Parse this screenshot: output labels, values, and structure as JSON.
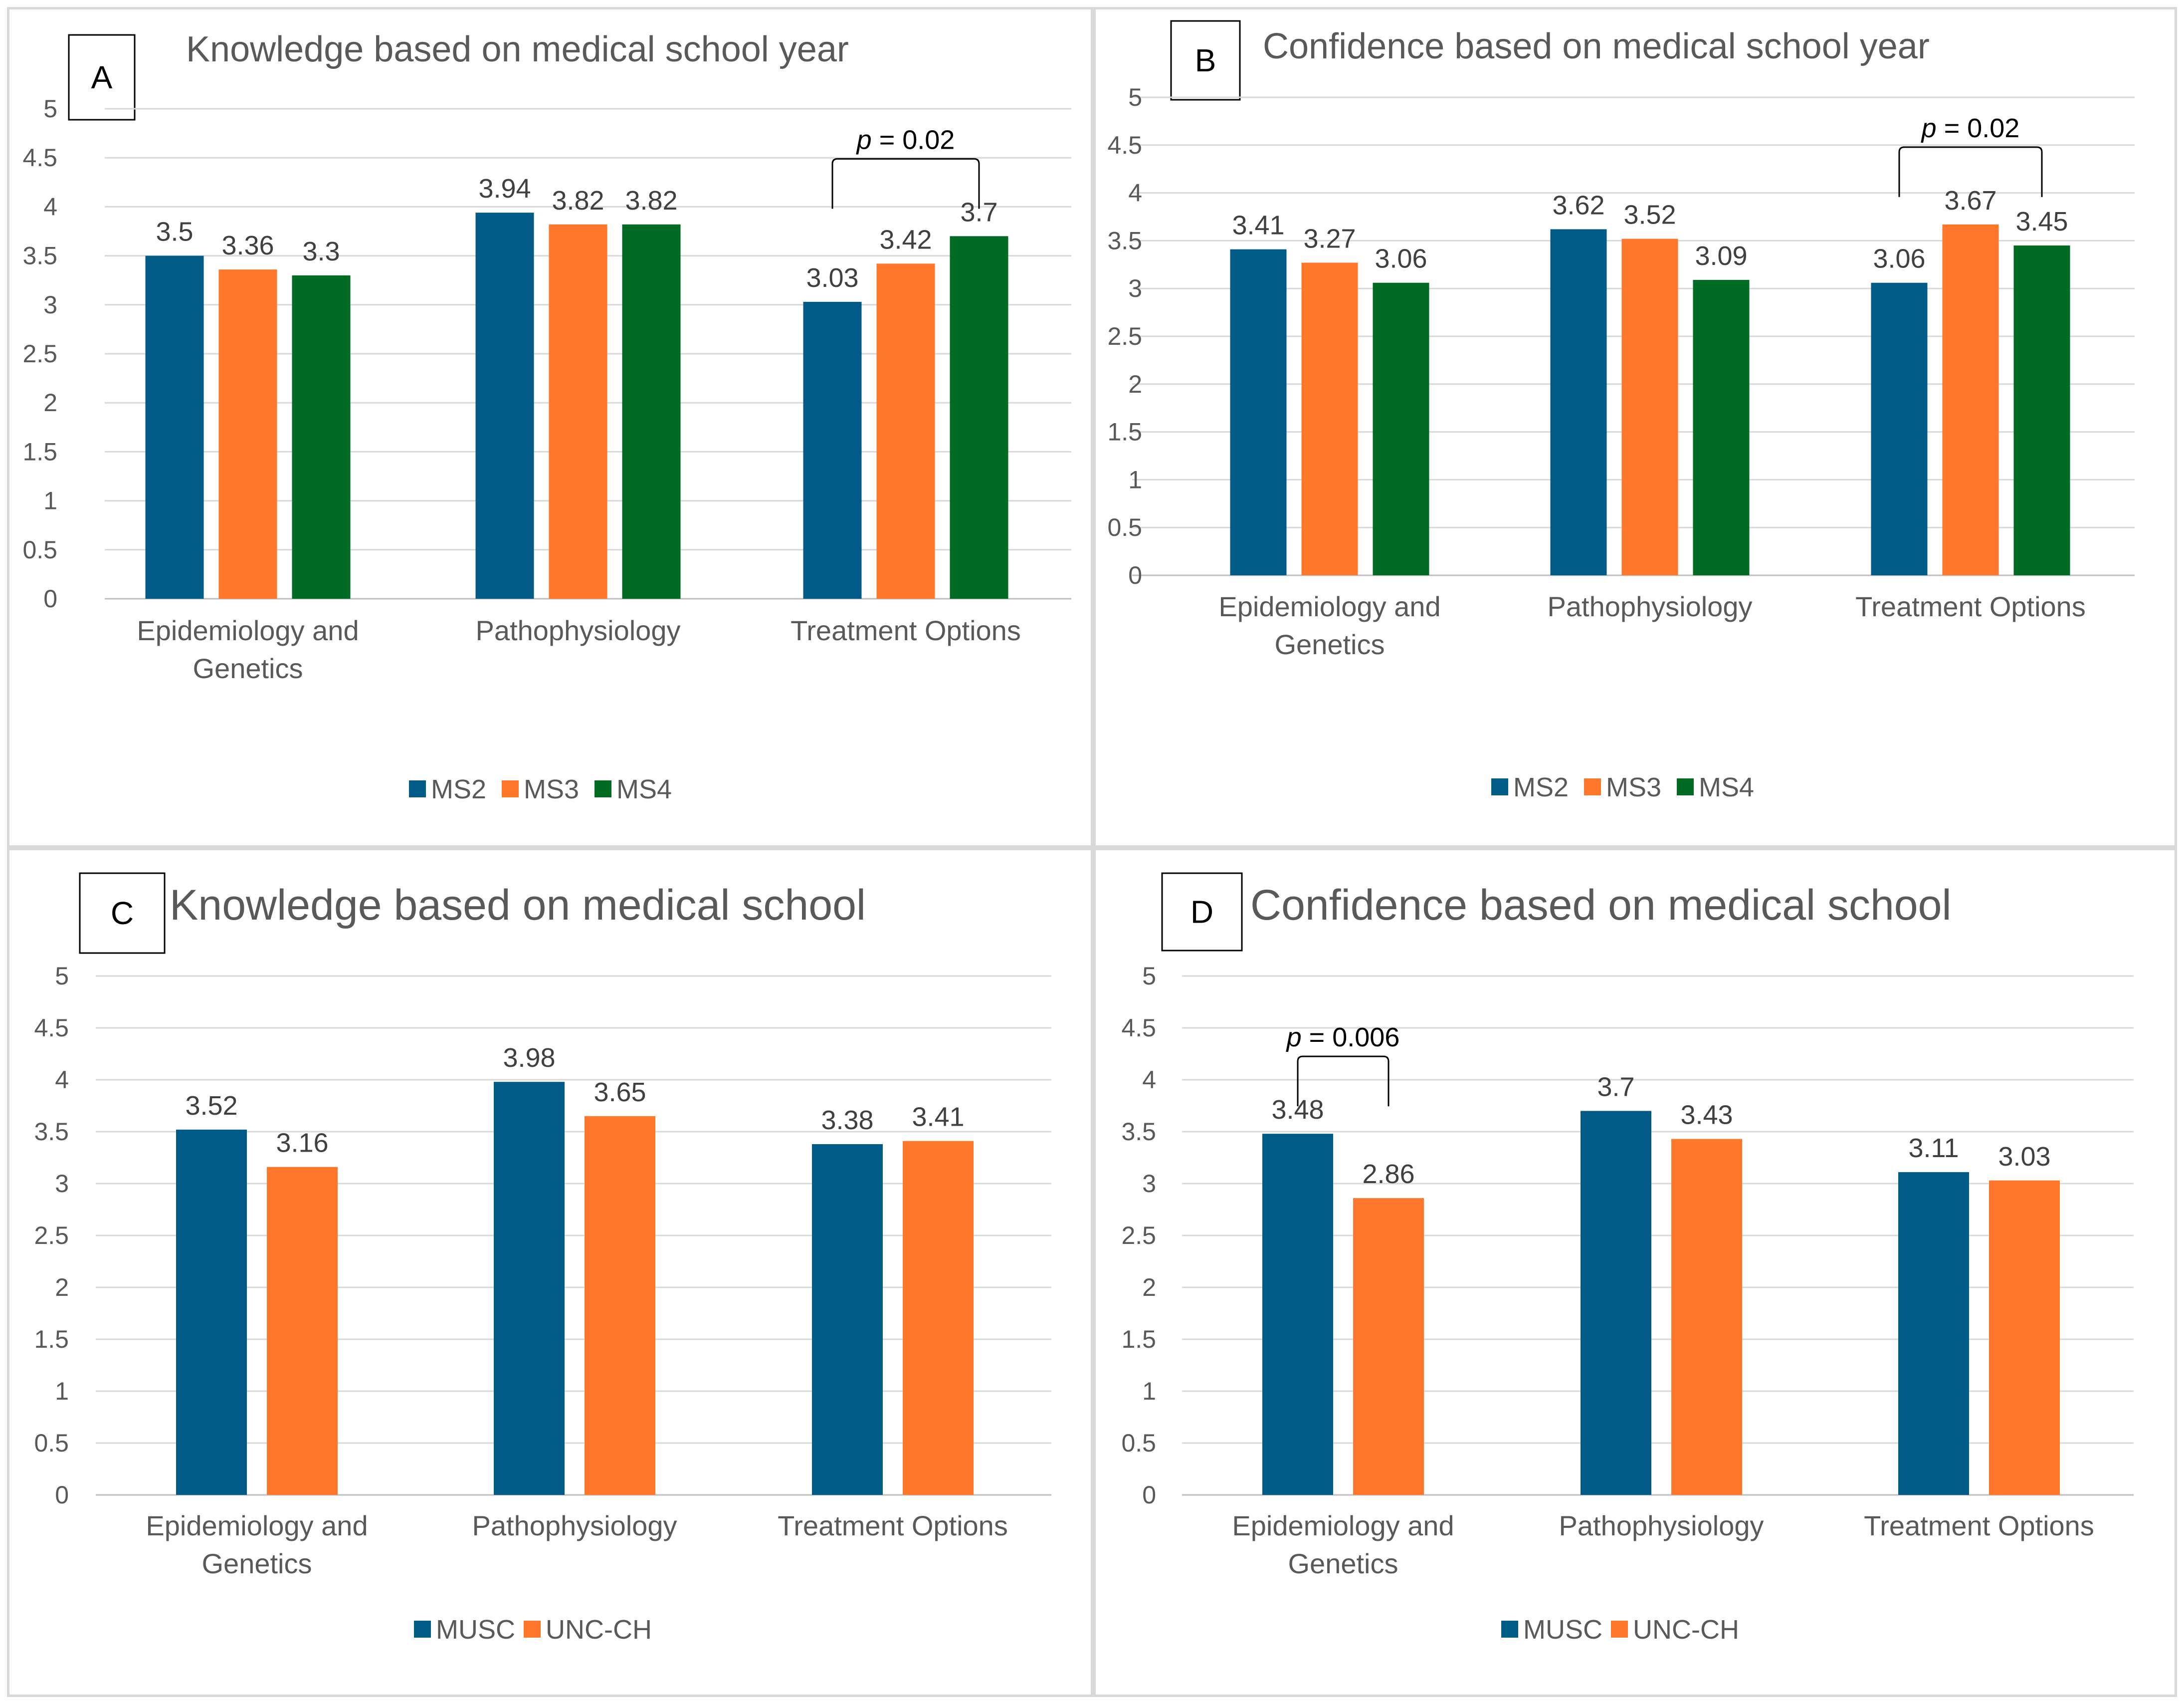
{
  "colors": {
    "blue": "#005c87",
    "orange": "#ff772a",
    "green": "#006b23",
    "grid": "#d9d9d9",
    "axis": "#bfbfbf"
  },
  "chart_data": [
    {
      "letter": "A",
      "type": "bar",
      "title": "Knowledge based on medical school year",
      "categories": [
        [
          "Epidemiology and",
          "Genetics"
        ],
        [
          "Pathophysiology"
        ],
        [
          "Treatment Options"
        ]
      ],
      "series": [
        {
          "name": "MS2",
          "color": "#005c87",
          "values": [
            3.5,
            3.94,
            3.03
          ],
          "labels": [
            "3.5",
            "3.94",
            "3.03"
          ]
        },
        {
          "name": "MS3",
          "color": "#ff772a",
          "values": [
            3.36,
            3.82,
            3.42
          ],
          "labels": [
            "3.36",
            "3.82",
            "3.42"
          ]
        },
        {
          "name": "MS4",
          "color": "#006b23",
          "values": [
            3.3,
            3.82,
            3.7
          ],
          "labels": [
            "3.3",
            "3.82",
            "3.7"
          ]
        }
      ],
      "ylim": [
        0,
        5
      ],
      "yticks": [
        "0",
        "0.5",
        "1",
        "1.5",
        "2",
        "2.5",
        "3",
        "3.5",
        "4",
        "4.5",
        "5"
      ],
      "annotation": {
        "p": "p",
        "rest": " = 0.02",
        "category": 2,
        "from_series": 0,
        "to_series": 2
      }
    },
    {
      "letter": "B",
      "type": "bar",
      "title": "Confidence based on medical school year",
      "categories": [
        [
          "Epidemiology and",
          "Genetics"
        ],
        [
          "Pathophysiology"
        ],
        [
          "Treatment Options"
        ]
      ],
      "series": [
        {
          "name": "MS2",
          "color": "#005c87",
          "values": [
            3.41,
            3.62,
            3.06
          ],
          "labels": [
            "3.41",
            "3.62",
            "3.06"
          ]
        },
        {
          "name": "MS3",
          "color": "#ff772a",
          "values": [
            3.27,
            3.52,
            3.67
          ],
          "labels": [
            "3.27",
            "3.52",
            "3.67"
          ]
        },
        {
          "name": "MS4",
          "color": "#006b23",
          "values": [
            3.06,
            3.09,
            3.45
          ],
          "labels": [
            "3.06",
            "3.09",
            "3.45"
          ]
        }
      ],
      "ylim": [
        0,
        5
      ],
      "yticks": [
        "0",
        "0.5",
        "1",
        "1.5",
        "2",
        "2.5",
        "3",
        "3.5",
        "4",
        "4.5",
        "5"
      ],
      "annotation": {
        "p": "p",
        "rest": " = 0.02",
        "category": 2,
        "from_series": 0,
        "to_series": 2
      }
    },
    {
      "letter": "C",
      "type": "bar",
      "title": "Knowledge based on medical school",
      "categories": [
        [
          "Epidemiology and",
          "Genetics"
        ],
        [
          "Pathophysiology"
        ],
        [
          "Treatment Options"
        ]
      ],
      "series": [
        {
          "name": "MUSC",
          "color": "#005c87",
          "values": [
            3.52,
            3.98,
            3.38
          ],
          "labels": [
            "3.52",
            "3.98",
            "3.38"
          ]
        },
        {
          "name": "UNC-CH",
          "color": "#ff772a",
          "values": [
            3.16,
            3.65,
            3.41
          ],
          "labels": [
            "3.16",
            "3.65",
            "3.41"
          ]
        }
      ],
      "ylim": [
        0,
        5
      ],
      "yticks": [
        "0",
        "0.5",
        "1",
        "1.5",
        "2",
        "2.5",
        "3",
        "3.5",
        "4",
        "4.5",
        "5"
      ]
    },
    {
      "letter": "D",
      "type": "bar",
      "title": "Confidence based on medical school",
      "categories": [
        [
          "Epidemiology and",
          "Genetics"
        ],
        [
          "Pathophysiology"
        ],
        [
          "Treatment Options"
        ]
      ],
      "series": [
        {
          "name": "MUSC",
          "color": "#005c87",
          "values": [
            3.48,
            3.7,
            3.11
          ],
          "labels": [
            "3.48",
            "3.7",
            "3.11"
          ]
        },
        {
          "name": "UNC-CH",
          "color": "#ff772a",
          "values": [
            2.86,
            3.43,
            3.03
          ],
          "labels": [
            "2.86",
            "3.43",
            "3.03"
          ]
        }
      ],
      "ylim": [
        0,
        5
      ],
      "yticks": [
        "0",
        "0.5",
        "1",
        "1.5",
        "2",
        "2.5",
        "3",
        "3.5",
        "4",
        "4.5",
        "5"
      ],
      "annotation": {
        "p": "p",
        "rest": " = 0.006",
        "category": 0,
        "from_series": 0,
        "to_series": 1
      }
    }
  ]
}
